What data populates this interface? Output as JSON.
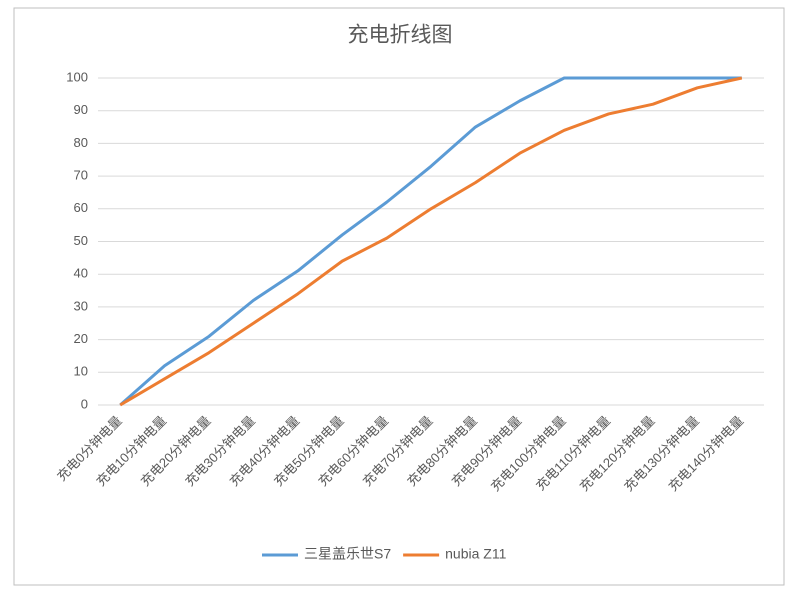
{
  "chart_data": {
    "type": "line",
    "title": "充电折线图",
    "categories": [
      "充电0分钟电量",
      "充电10分钟电量",
      "充电20分钟电量",
      "充电30分钟电量",
      "充电40分钟电量",
      "充电50分钟电量",
      "充电60分钟电量",
      "充电70分钟电量",
      "充电80分钟电量",
      "充电90分钟电量",
      "充电100分钟电量",
      "充电110分钟电量",
      "充电120分钟电量",
      "充电130分钟电量",
      "充电140分钟电量"
    ],
    "series": [
      {
        "name": "三星盖乐世S7",
        "color": "#5b9bd5",
        "values": [
          0,
          12,
          21,
          32,
          41,
          52,
          62,
          73,
          85,
          93,
          100,
          100,
          100,
          100,
          100
        ]
      },
      {
        "name": "nubia Z11",
        "color": "#ed7d31",
        "values": [
          0,
          8,
          16,
          25,
          34,
          44,
          51,
          60,
          68,
          77,
          84,
          89,
          92,
          97,
          100
        ]
      }
    ],
    "ylim": [
      0,
      100
    ],
    "yticks": [
      0,
      10,
      20,
      30,
      40,
      50,
      60,
      70,
      80,
      90,
      100
    ],
    "grid": true,
    "legend": "bottom"
  }
}
